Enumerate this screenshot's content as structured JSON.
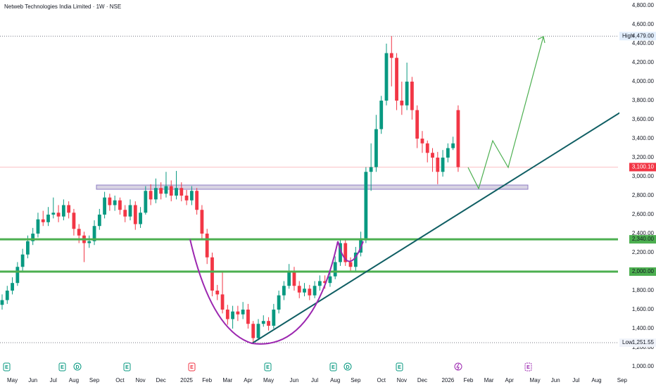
{
  "chart_data": {
    "type": "candlestick",
    "title": "Netweb Technologies India Limited · 1W · NSE",
    "categories": [
      null,
      null,
      "May",
      null,
      null,
      null,
      "Jun",
      null,
      null,
      null,
      "Jul",
      null,
      null,
      null,
      "Aug",
      null,
      null,
      null,
      "Sep",
      null,
      null,
      null,
      null,
      "Oct",
      null,
      null,
      null,
      "Nov",
      null,
      null,
      null,
      "Dec",
      null,
      null,
      null,
      null,
      "2025",
      null,
      null,
      null,
      "Feb",
      null,
      null,
      null,
      "Mar",
      null,
      null,
      null,
      "Apr",
      null,
      null,
      null,
      "May",
      null,
      null,
      null,
      null,
      "Jun",
      null,
      null,
      null,
      "Jul",
      null,
      null,
      null,
      "Aug",
      null,
      null,
      null,
      "Sep",
      null,
      null,
      null,
      null,
      "Oct",
      null,
      null,
      null,
      "Nov",
      null,
      null,
      null,
      "Dec",
      null,
      null,
      null,
      null,
      "2026",
      null,
      null,
      null,
      "Feb",
      null,
      null,
      null,
      "Mar",
      null,
      null,
      null,
      "Apr",
      null,
      null,
      null,
      null,
      "May",
      null,
      null,
      null,
      "Jun",
      null,
      null,
      null,
      "Jul",
      null,
      null,
      null,
      "Aug",
      null,
      null,
      null,
      null,
      "Sep"
    ],
    "open": [
      1650,
      1700,
      1800,
      1880,
      2050,
      2180,
      2320,
      2400,
      2550,
      2520,
      2600,
      2620,
      2580,
      2700,
      2620,
      2450,
      2380,
      2300,
      2320,
      2480,
      2600,
      2780,
      2700,
      2750,
      2650,
      2580,
      2700,
      2500,
      2620,
      2850,
      2760,
      2880,
      2820,
      2900,
      2800,
      2880,
      2800,
      2750,
      2850,
      2650,
      2400,
      2150,
      1800,
      1760,
      1600,
      1500,
      1580,
      1550,
      1600,
      1450,
      1300,
      1450,
      1480,
      1430,
      1600,
      1750,
      1850,
      2000,
      1850,
      1780,
      1820,
      1750,
      1850,
      1900,
      1880,
      1950,
      2100,
      2300,
      2100,
      2050,
      2200,
      2350,
      3050,
      3100,
      3500,
      3800,
      4300,
      4250,
      3800,
      3750,
      4000,
      3700,
      3400,
      3350,
      3250,
      3200,
      3050,
      3200,
      3300,
      3700,
      null,
      null,
      null,
      null,
      null,
      null,
      null,
      null,
      null,
      null,
      null,
      null,
      null,
      null,
      null,
      null,
      null,
      null,
      null,
      null,
      null,
      null,
      null,
      null,
      null,
      null,
      null,
      null,
      null,
      null,
      null,
      null
    ],
    "high": [
      1760,
      1850,
      1940,
      2100,
      2240,
      2380,
      2460,
      2620,
      2640,
      2680,
      2780,
      2700,
      2760,
      2740,
      2660,
      2500,
      2420,
      2380,
      2540,
      2660,
      2840,
      2820,
      2800,
      2780,
      2700,
      2760,
      2740,
      2680,
      2900,
      2920,
      2980,
      2940,
      3050,
      2960,
      3060,
      2940,
      2860,
      2900,
      2880,
      2700,
      2450,
      2200,
      1860,
      2000,
      1650,
      1640,
      1640,
      1680,
      1660,
      1480,
      1500,
      1540,
      1520,
      1660,
      1800,
      1900,
      2080,
      2050,
      1900,
      1880,
      1860,
      1900,
      1960,
      1960,
      2020,
      2160,
      2340,
      2330,
      2150,
      2260,
      2420,
      3100,
      3350,
      3650,
      3850,
      4400,
      4479,
      4300,
      4000,
      4200,
      4050,
      3750,
      3480,
      3380,
      3300,
      3260,
      3280,
      3350,
      3420,
      3750,
      null,
      null,
      null,
      null,
      null,
      null,
      null,
      null,
      null,
      null,
      null,
      null,
      null,
      null,
      null,
      null,
      null,
      null,
      null,
      null,
      null,
      null,
      null,
      null,
      null,
      null,
      null,
      null,
      null,
      null,
      null,
      null
    ],
    "low": [
      1600,
      1660,
      1760,
      1850,
      2000,
      2140,
      2280,
      2360,
      2480,
      2480,
      2560,
      2520,
      2540,
      2560,
      2380,
      2300,
      2100,
      2250,
      2280,
      2440,
      2560,
      2640,
      2640,
      2600,
      2520,
      2540,
      2440,
      2460,
      2600,
      2700,
      2720,
      2760,
      2780,
      2740,
      2760,
      2740,
      2700,
      2700,
      2600,
      2340,
      2080,
      1740,
      1700,
      1560,
      1440,
      1400,
      1480,
      1500,
      1400,
      1251.55,
      1280,
      1420,
      1380,
      1400,
      1560,
      1700,
      1820,
      1800,
      1720,
      1740,
      1700,
      1720,
      1800,
      1820,
      1840,
      1920,
      2060,
      2060,
      2000,
      2010,
      2160,
      2300,
      2850,
      3050,
      3450,
      3750,
      3950,
      3700,
      3650,
      3700,
      3600,
      3300,
      3250,
      3150,
      3050,
      2920,
      3000,
      3150,
      3280,
      3050,
      null,
      null,
      null,
      null,
      null,
      null,
      null,
      null,
      null,
      null,
      null,
      null,
      null,
      null,
      null,
      null,
      null,
      null,
      null,
      null,
      null,
      null,
      null,
      null,
      null,
      null,
      null,
      null,
      null,
      null,
      null,
      null
    ],
    "close": [
      1700,
      1800,
      1880,
      2050,
      2180,
      2320,
      2400,
      2550,
      2520,
      2600,
      2620,
      2580,
      2700,
      2620,
      2450,
      2380,
      2300,
      2320,
      2480,
      2600,
      2780,
      2700,
      2750,
      2650,
      2580,
      2700,
      2500,
      2620,
      2850,
      2760,
      2880,
      2820,
      2900,
      2800,
      2880,
      2800,
      2750,
      2850,
      2650,
      2400,
      2150,
      1800,
      1760,
      1600,
      1500,
      1580,
      1550,
      1600,
      1450,
      1300,
      1450,
      1480,
      1430,
      1600,
      1750,
      1850,
      2000,
      1850,
      1780,
      1820,
      1750,
      1850,
      1900,
      1880,
      1950,
      2100,
      2300,
      2100,
      2050,
      2200,
      2350,
      3050,
      3100,
      3500,
      3800,
      4300,
      4250,
      3800,
      3750,
      4000,
      3700,
      3400,
      3350,
      3250,
      3200,
      3050,
      3200,
      3300,
      3350,
      3100.1,
      null,
      null,
      null,
      null,
      null,
      null,
      null,
      null,
      null,
      null,
      null,
      null,
      null,
      null,
      null,
      null,
      null,
      null,
      null,
      null,
      null,
      null,
      null,
      null,
      null,
      null,
      null,
      null,
      null,
      null,
      null,
      null
    ],
    "up_color": "#089981",
    "down_color": "#f23645",
    "ylim": [
      1000,
      4800
    ],
    "yticks": [
      {
        "value": 1000,
        "label": "1,000.00"
      },
      {
        "value": 1200,
        "label": "1,200.00"
      },
      {
        "value": 1400,
        "label": "1,400.00"
      },
      {
        "value": 1600,
        "label": "1,600.00"
      },
      {
        "value": 1800,
        "label": "1,800.00"
      },
      {
        "value": 2000,
        "label": "2,000.00"
      },
      {
        "value": 2200,
        "label": "2,200.00"
      },
      {
        "value": 2400,
        "label": "2,400.00"
      },
      {
        "value": 2600,
        "label": "2,600.00"
      },
      {
        "value": 2800,
        "label": "2,800.00"
      },
      {
        "value": 3000,
        "label": "3,000.00"
      },
      {
        "value": 3200,
        "label": "3,200.00"
      },
      {
        "value": 3400,
        "label": "3,400.00"
      },
      {
        "value": 3600,
        "label": "3,600.00"
      },
      {
        "value": 3800,
        "label": "3,800.00"
      },
      {
        "value": 4000,
        "label": "4,000.00"
      },
      {
        "value": 4200,
        "label": "4,200.00"
      },
      {
        "value": 4400,
        "label": "4,400.00"
      },
      {
        "value": 4600,
        "label": "4,600.00"
      },
      {
        "value": 4800,
        "label": "4,800.00"
      }
    ],
    "levels": [
      {
        "value": 2340,
        "label": "2,340.00",
        "color": "#4caf50"
      },
      {
        "value": 2000,
        "label": "2,000.00",
        "color": "#4caf50"
      }
    ],
    "extremes": [
      {
        "name": "High",
        "value": 4479,
        "label": "4,479.00"
      },
      {
        "name": "Low",
        "value": 1251.55,
        "label": "1,251.55"
      }
    ],
    "last_price": {
      "value": 3100.1,
      "label": "3,100.10",
      "color": "#f23645"
    },
    "events": [
      {
        "label": "E"
      },
      {
        "label": "E"
      },
      {
        "label": "D"
      },
      {
        "label": "E"
      },
      {
        "label": "E"
      },
      {
        "label": "E"
      },
      {
        "label": "E"
      },
      {
        "label": "D"
      },
      {
        "label": "E"
      },
      {
        "label": "E"
      }
    ]
  }
}
